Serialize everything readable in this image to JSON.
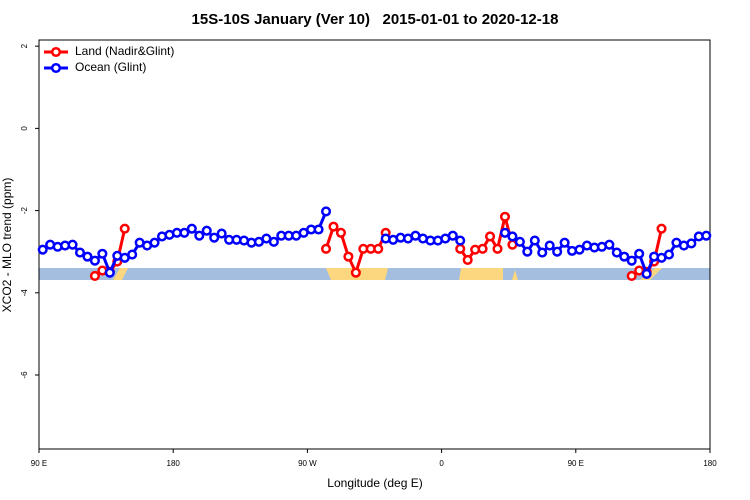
{
  "chart_data": {
    "type": "line",
    "title": "15S-10S January (Ver 10)   2015-01-01 to 2020-12-18",
    "x_label": "Longitude (deg E)",
    "y_label": "XCO2 - MLO trend (ppm)",
    "xlim": [
      90,
      540
    ],
    "xticks": [
      {
        "value": 90,
        "label": "90 E"
      },
      180,
      {
        "value": 270,
        "label": "90 W"
      },
      {
        "value": 360,
        "label": "0"
      },
      {
        "value": 450,
        "label": "90 E"
      },
      {
        "value": 540,
        "label": "180"
      }
    ],
    "ylim": [
      -7.8,
      2.15
    ],
    "yticks": [
      -6,
      -4,
      -2,
      0,
      2
    ],
    "legend": "top-left",
    "x": [
      92.5,
      97.5,
      102.5,
      107.5,
      112.5,
      117.5,
      122.5,
      127.5,
      132.5,
      137.5,
      142.5,
      147.5,
      152.5,
      157.5,
      162.5,
      167.5,
      172.5,
      177.5,
      182.5,
      187.5,
      192.5,
      197.5,
      202.5,
      207.5,
      212.5,
      217.5,
      222.5,
      227.5,
      232.5,
      237.5,
      242.5,
      247.5,
      252.5,
      257.5,
      262.5,
      267.5,
      272.5,
      277.5,
      282.5,
      287.5,
      292.5,
      297.5,
      302.5,
      307.5,
      312.5,
      317.5,
      322.5,
      327.5,
      332.5,
      337.5,
      342.5,
      347.5,
      352.5,
      357.5,
      362.5,
      367.5,
      372.5,
      377.5,
      382.5,
      387.5,
      392.5,
      397.5,
      402.5,
      407.5,
      412.5,
      417.5,
      422.5,
      427.5,
      432.5,
      437.5,
      442.5,
      447.5,
      452.5,
      457.5,
      462.5,
      467.5,
      472.5,
      477.5,
      482.5,
      487.5,
      492.5,
      497.5,
      502.5,
      507.5,
      512.5,
      517.5,
      522.5,
      527.5,
      532.5,
      537.5
    ],
    "series": [
      {
        "name": "Land (Nadir&Glint)",
        "color": "#ff0000",
        "values": [
          null,
          null,
          null,
          null,
          null,
          null,
          null,
          -3.59,
          -3.46,
          -3.49,
          -3.24,
          -2.44,
          null,
          null,
          null,
          null,
          null,
          null,
          null,
          null,
          null,
          null,
          null,
          null,
          null,
          null,
          null,
          null,
          null,
          null,
          null,
          null,
          null,
          null,
          null,
          null,
          null,
          null,
          -2.93,
          -2.39,
          -2.54,
          -3.12,
          -3.51,
          -2.93,
          -2.93,
          -2.93,
          -2.54,
          null,
          null,
          null,
          null,
          null,
          null,
          null,
          null,
          null,
          -2.93,
          -3.2,
          -2.95,
          -2.93,
          -2.63,
          -2.93,
          -2.15,
          -2.83,
          null,
          null,
          null,
          null,
          null,
          null,
          null,
          null,
          null,
          null,
          null,
          null,
          null,
          null,
          null,
          -3.59,
          -3.46,
          -3.49,
          -3.24,
          -2.44,
          null,
          null,
          null,
          null,
          null,
          null
        ]
      },
      {
        "name": "Ocean (Glint)",
        "color": "#0000ff",
        "values": [
          -2.95,
          -2.83,
          -2.88,
          -2.85,
          -2.83,
          -3.02,
          -3.12,
          -3.22,
          -3.05,
          -3.51,
          -3.1,
          -3.15,
          -3.07,
          -2.78,
          -2.85,
          -2.78,
          -2.63,
          -2.59,
          -2.54,
          -2.54,
          -2.44,
          -2.61,
          -2.49,
          -2.66,
          -2.56,
          -2.71,
          -2.71,
          -2.73,
          -2.78,
          -2.76,
          -2.68,
          -2.76,
          -2.61,
          -2.61,
          -2.61,
          -2.54,
          -2.46,
          -2.46,
          -2.02,
          null,
          null,
          null,
          null,
          null,
          null,
          null,
          -2.68,
          -2.71,
          -2.66,
          -2.68,
          -2.61,
          -2.68,
          -2.73,
          -2.73,
          -2.68,
          -2.61,
          -2.73,
          null,
          null,
          null,
          null,
          null,
          -2.54,
          -2.63,
          -2.76,
          -3.0,
          -2.73,
          -3.02,
          -2.85,
          -3.0,
          -2.78,
          -2.98,
          -2.95,
          -2.85,
          -2.9,
          -2.88,
          -2.83,
          -3.02,
          -3.12,
          -3.22,
          -3.05,
          -3.54,
          -3.12,
          -3.15,
          -3.07,
          -2.78,
          -2.85,
          -2.8,
          -2.63,
          -2.61
        ]
      }
    ]
  }
}
